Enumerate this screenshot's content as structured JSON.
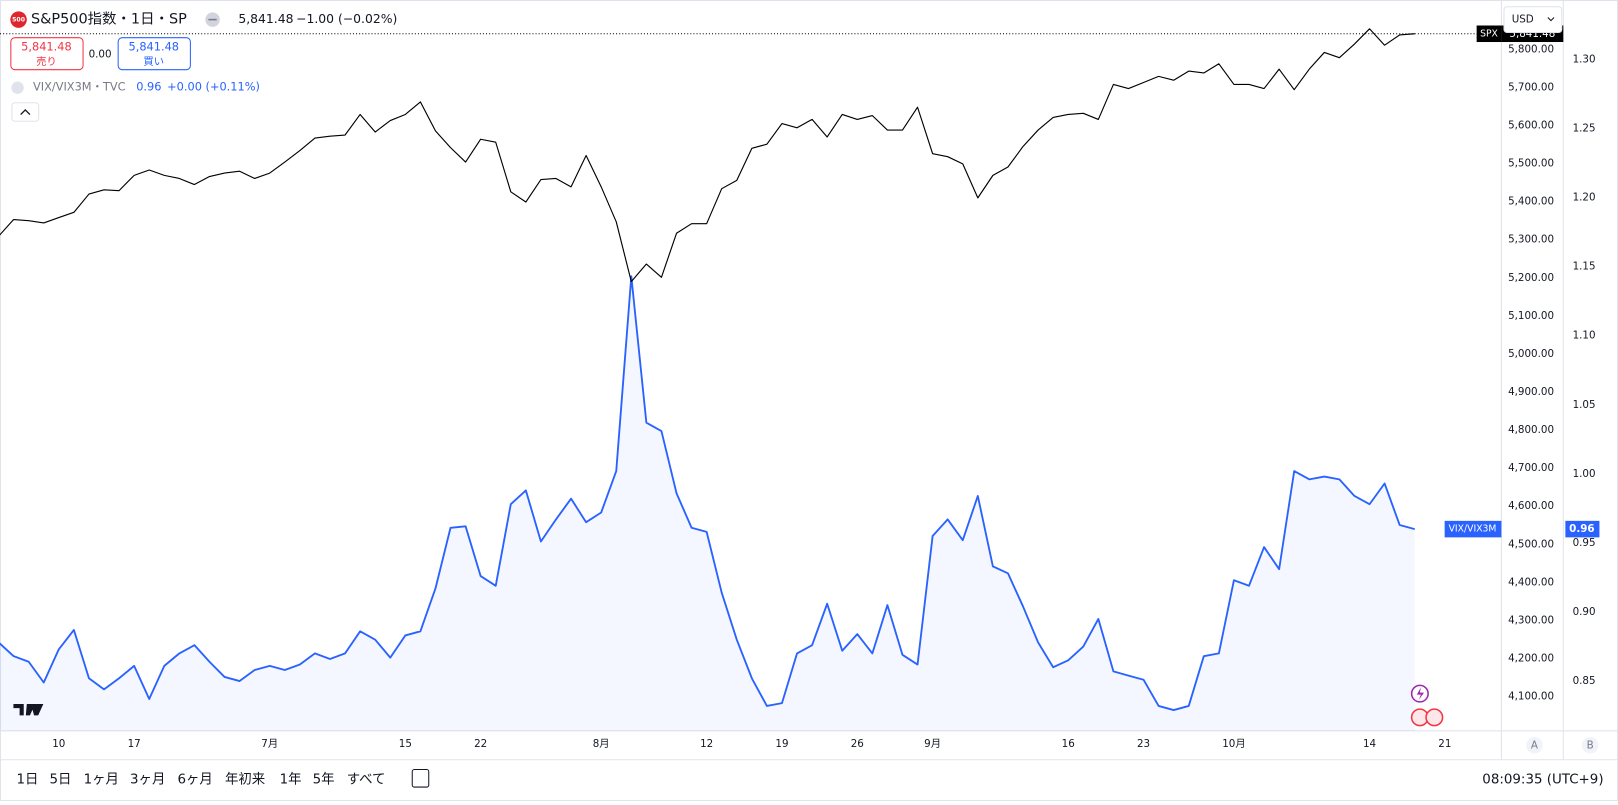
{
  "header": {
    "symbol_badge": "500",
    "title": "S&P500指数・1日・SP",
    "price": "5,841.48",
    "change": "−1.00 (−0.02%)",
    "sell_price": "5,841.48",
    "sell": "売り",
    "spread": "0.00",
    "buy_price": "5,841.48",
    "buy": "買い"
  },
  "legend2": {
    "symbol": "VIX/VIX3M・TVC",
    "value": "0.96",
    "change": "+0.00 (+0.11%)"
  },
  "currency": "USD",
  "price_tags": {
    "spx": "5,841.48",
    "vix": "0.96"
  },
  "scale_buttons": [
    "A",
    "B"
  ],
  "ranges": [
    "1日",
    "5日",
    "1ヶ月",
    "3ヶ月",
    "6ヶ月",
    "年初来",
    "1年",
    "5年",
    "すべて"
  ],
  "clock": "08:09:35 (UTC+9)",
  "chart_data": {
    "type": "line",
    "categories": [
      null,
      null,
      null,
      null,
      "10",
      null,
      null,
      null,
      null,
      "17",
      null,
      null,
      null,
      null,
      null,
      null,
      null,
      null,
      "7月",
      null,
      null,
      null,
      null,
      null,
      null,
      null,
      null,
      "15",
      null,
      null,
      null,
      null,
      "22",
      null,
      null,
      null,
      null,
      null,
      null,
      null,
      "8月",
      null,
      null,
      null,
      null,
      null,
      null,
      "12",
      null,
      null,
      null,
      null,
      "19",
      null,
      null,
      null,
      null,
      "26",
      null,
      null,
      null,
      null,
      "9月",
      null,
      null,
      null,
      null,
      null,
      null,
      null,
      null,
      "16",
      null,
      null,
      null,
      null,
      "23",
      null,
      null,
      null,
      null,
      null,
      "10月",
      null,
      null,
      null,
      null,
      null,
      null,
      null,
      null,
      "14",
      null,
      null,
      null,
      null,
      "21"
    ],
    "series": [
      {
        "name": "SPX",
        "color": "#000000",
        "values": [
          5309,
          5353,
          5350,
          5344,
          5358,
          5372,
          5420,
          5431,
          5429,
          5469,
          5483,
          5469,
          5461,
          5445,
          5466,
          5475,
          5480,
          5461,
          5475,
          5504,
          5534,
          5567,
          5572,
          5575,
          5629,
          5583,
          5613,
          5629,
          5662,
          5586,
          5542,
          5504,
          5564,
          5556,
          5426,
          5399,
          5458,
          5461,
          5439,
          5521,
          5439,
          5347,
          5190,
          5236,
          5201,
          5317,
          5342,
          5342,
          5434,
          5456,
          5540,
          5551,
          5605,
          5594,
          5616,
          5570,
          5629,
          5616,
          5626,
          5588,
          5588,
          5648,
          5526,
          5518,
          5499,
          5410,
          5469,
          5491,
          5545,
          5588,
          5621,
          5629,
          5632,
          5616,
          5708,
          5697,
          5713,
          5729,
          5719,
          5743,
          5738,
          5762,
          5708,
          5708,
          5697,
          5748,
          5694,
          5748,
          5792,
          5778,
          5814,
          5854,
          5811,
          5838,
          5841,
          null,
          null
        ]
      },
      {
        "name": "VIX/VIX3M",
        "color": "#2962ff",
        "axis": "y2",
        "area": true,
        "values": [
          0.878,
          0.868,
          0.864,
          0.849,
          0.873,
          0.887,
          0.852,
          0.844,
          0.852,
          0.861,
          0.837,
          0.861,
          0.87,
          0.876,
          0.864,
          0.853,
          0.85,
          0.858,
          0.861,
          0.858,
          0.862,
          0.87,
          0.866,
          0.87,
          0.886,
          0.88,
          0.867,
          0.883,
          0.886,
          0.917,
          0.961,
          0.962,
          0.926,
          0.919,
          0.978,
          0.988,
          0.951,
          0.967,
          0.982,
          0.965,
          0.972,
          1.002,
          1.143,
          1.037,
          1.031,
          0.986,
          0.961,
          0.958,
          0.914,
          0.88,
          0.852,
          0.832,
          0.834,
          0.87,
          0.876,
          0.906,
          0.872,
          0.884,
          0.87,
          0.905,
          0.869,
          0.862,
          0.955,
          0.967,
          0.952,
          0.984,
          0.933,
          0.928,
          0.904,
          0.878,
          0.86,
          0.865,
          0.875,
          0.895,
          0.857,
          0.854,
          0.851,
          0.832,
          0.829,
          0.832,
          0.868,
          0.87,
          0.923,
          0.919,
          0.947,
          0.931,
          1.002,
          0.996,
          0.998,
          0.996,
          0.984,
          0.978,
          0.993,
          0.963,
          0.96,
          null,
          null
        ]
      }
    ],
    "ylim": [
      4010,
      5908
    ],
    "yticks": [
      {
        "value": 4100,
        "label": "4,100.00"
      },
      {
        "value": 4200,
        "label": "4,200.00"
      },
      {
        "value": 4300,
        "label": "4,300.00"
      },
      {
        "value": 4400,
        "label": "4,400.00"
      },
      {
        "value": 4500,
        "label": "4,500.00"
      },
      {
        "value": 4600,
        "label": "4,600.00"
      },
      {
        "value": 4700,
        "label": "4,700.00"
      },
      {
        "value": 4800,
        "label": "4,800.00"
      },
      {
        "value": 4900,
        "label": "4,900.00"
      },
      {
        "value": 5000,
        "label": "5,000.00"
      },
      {
        "value": 5100,
        "label": "5,100.00"
      },
      {
        "value": 5200,
        "label": "5,200.00"
      },
      {
        "value": 5300,
        "label": "5,300.00"
      },
      {
        "value": 5400,
        "label": "5,400.00"
      },
      {
        "value": 5500,
        "label": "5,500.00"
      },
      {
        "value": 5600,
        "label": "5,600.00"
      },
      {
        "value": 5700,
        "label": "5,700.00"
      },
      {
        "value": 5800,
        "label": "5,800.00"
      }
    ],
    "y2lim": [
      0.814,
      1.337
    ],
    "y2ticks": [
      0.85,
      {
        "value": 0.9,
        "label": "0.90"
      },
      0.95,
      {
        "value": 1,
        "label": "1.00"
      },
      1.05,
      {
        "value": 1.1,
        "label": "1.10"
      },
      1.15,
      {
        "value": 1.2,
        "label": "1.20"
      },
      1.25,
      {
        "value": 1.3,
        "label": "1.30"
      }
    ],
    "grid": false
  }
}
